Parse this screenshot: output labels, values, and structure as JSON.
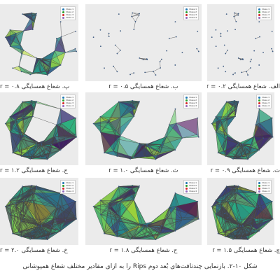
{
  "legend": {
    "labels": [
      "Class 1",
      "Class 2",
      "Class 3",
      "Class 4"
    ],
    "colors": [
      "#1f77b4",
      "#2ca02c",
      "#d62728",
      "#9467bd"
    ]
  },
  "colors": {
    "panel_bg": "#ebebeb",
    "node": "#3d5a80",
    "edge": "#444444",
    "fill_palette": [
      "#440154",
      "#3b528b",
      "#21918c",
      "#5ec962",
      "#b5de2b",
      "#2c728e",
      "#27ad81"
    ]
  },
  "panels": [
    {
      "id": "a",
      "caption": "الف. شعاع همسایگی ۰.۲ = r",
      "density": 0.0
    },
    {
      "id": "b",
      "caption": "ب. شعاع همسایگی ۰.۵ = r",
      "density": 0.1
    },
    {
      "id": "p",
      "caption": "پ. شعاع همسایگی ۰.۸ = r",
      "density": 0.4
    },
    {
      "id": "t",
      "caption": "ت. شعاع همسایگی ۰.۹ = r",
      "density": 0.55
    },
    {
      "id": "th",
      "caption": "ث. شعاع همسایگی ۱.۰ = r",
      "density": 0.65
    },
    {
      "id": "j",
      "caption": "ج. شعاع همسایگی ۱.۲ = r",
      "density": 0.75
    },
    {
      "id": "ch",
      "caption": "چ. شعاع همسایگی ۱.۵ = r",
      "density": 0.85
    },
    {
      "id": "h",
      "caption": "ح. شعاع همسایگی ۱.۸ = r",
      "density": 0.92
    },
    {
      "id": "kh",
      "caption": "خ. شعاع همسایگی ۲.۰ = r",
      "density": 1.0
    }
  ],
  "figure_caption": "شکل ۱۰-۲. بازنمایی چندتافت‌های بُعد دوم Rips را به ازای مقادیر مختلف شعاع همپوشانی"
}
